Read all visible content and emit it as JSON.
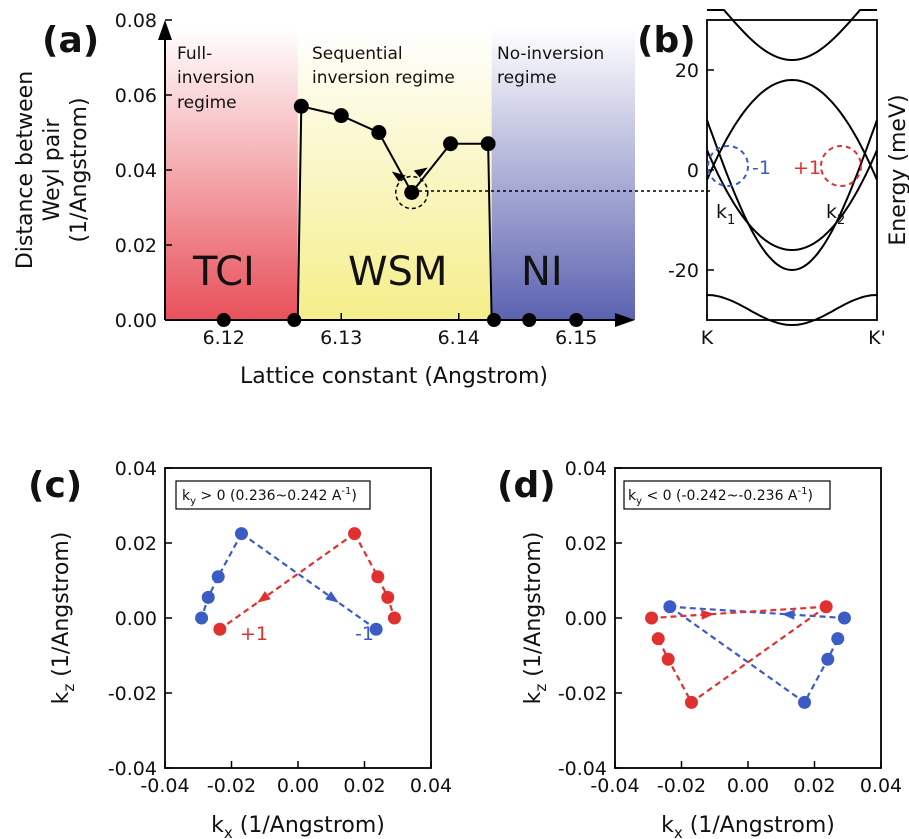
{
  "figure": {
    "panels": {
      "a": {
        "label": "(a)"
      },
      "b": {
        "label": "(b)"
      },
      "c": {
        "label": "(c)"
      },
      "d": {
        "label": "(d)"
      }
    }
  },
  "chart_data": [
    {
      "panel": "a",
      "type": "scatter",
      "xlabel": "Lattice constant (Angstrom)",
      "ylabel_line1": "Distance between",
      "ylabel_line2": "Weyl pair",
      "ylabel_line3": "(1/Angstrom)",
      "xlim": [
        6.115,
        6.155
      ],
      "ylim": [
        0.0,
        0.08
      ],
      "xticks": [
        "6.12",
        "6.13",
        "6.14",
        "6.15"
      ],
      "yticks": [
        "0.00",
        "0.02",
        "0.04",
        "0.06",
        "0.08"
      ],
      "regions": [
        {
          "name": "Full-inversion regime",
          "line1": "Full-",
          "line2": "inversion",
          "line3": "regime",
          "phase": "TCI",
          "color": "#e8505a",
          "range": [
            6.115,
            6.1263
          ]
        },
        {
          "name": "Sequential inversion regime",
          "line1": "Sequential",
          "line2": "inversion regime",
          "phase": "WSM",
          "color": "#f5ee8a",
          "range": [
            6.1263,
            6.1428
          ]
        },
        {
          "name": "No-inversion regime",
          "line1": "No-inversion",
          "line2": "regime",
          "phase": "NI",
          "color": "#5c62b0",
          "range": [
            6.1428,
            6.155
          ]
        }
      ],
      "series": [
        {
          "points": [
            [
              6.1263,
              0.0
            ],
            [
              6.1266,
              0.057
            ],
            [
              6.13,
              0.0545
            ],
            [
              6.1332,
              0.05
            ],
            [
              6.136,
              0.034
            ],
            [
              6.1393,
              0.047
            ],
            [
              6.1425,
              0.047
            ],
            [
              6.1428,
              0.0
            ]
          ]
        }
      ],
      "extra_points": [
        [
          6.12,
          0.0
        ],
        [
          6.126,
          0.0
        ],
        [
          6.143,
          0.0
        ],
        [
          6.146,
          0.0
        ],
        [
          6.15,
          0.0
        ]
      ],
      "highlight": [
        6.136,
        0.034
      ]
    },
    {
      "panel": "b",
      "type": "line",
      "ylabel": "Energy (meV)",
      "ylim": [
        -30,
        30
      ],
      "yticks": [
        "20",
        "0",
        "-20"
      ],
      "xticks": [
        "K",
        "K'"
      ],
      "weyl_points": [
        {
          "label": "k",
          "sub": "1",
          "chirality": "-1",
          "color": "#3b5cc4"
        },
        {
          "label": "k",
          "sub": "2",
          "chirality": "+1",
          "color": "#e03030"
        }
      ]
    },
    {
      "panel": "c",
      "type": "scatter",
      "annotation_main": "k",
      "annotation_sub": "y",
      "annotation_rest": " > 0 (0.236~0.242 A",
      "annotation_sup": "-1",
      "annotation_end": ")",
      "xlabel_main": "k",
      "xlabel_sub": "x",
      "xlabel_rest": " (1/Angstrom)",
      "ylabel_main": "k",
      "ylabel_sub": "z",
      "ylabel_rest": " (1/Angstrom)",
      "xlim": [
        -0.04,
        0.04
      ],
      "ylim": [
        -0.04,
        0.04
      ],
      "xticks": [
        "-0.04",
        "-0.02",
        "0.00",
        "0.02",
        "0.04"
      ],
      "yticks": [
        "-0.04",
        "-0.02",
        "0.00",
        "0.02",
        "0.04"
      ],
      "series": [
        {
          "name": "-1",
          "color": "#3b5cc4",
          "points": [
            [
              -0.017,
              0.0225
            ],
            [
              -0.024,
              0.011
            ],
            [
              -0.027,
              0.0055
            ],
            [
              -0.029,
              0.0
            ],
            [
              0.0235,
              -0.003
            ]
          ]
        },
        {
          "name": "+1",
          "color": "#e03030",
          "points": [
            [
              0.017,
              0.0225
            ],
            [
              0.024,
              0.011
            ],
            [
              0.027,
              0.0055
            ],
            [
              0.029,
              0.0
            ],
            [
              -0.0235,
              -0.003
            ]
          ]
        }
      ]
    },
    {
      "panel": "d",
      "type": "scatter",
      "annotation_main": "k",
      "annotation_sub": "y",
      "annotation_rest": " < 0 (-0.242~-0.236 A",
      "annotation_sup": "-1",
      "annotation_end": ")",
      "xlabel_main": "k",
      "xlabel_sub": "x",
      "xlabel_rest": " (1/Angstrom)",
      "ylabel_main": "k",
      "ylabel_sub": "z",
      "ylabel_rest": " (1/Angstrom)",
      "xlim": [
        -0.04,
        0.04
      ],
      "ylim": [
        -0.04,
        0.04
      ],
      "xticks": [
        "-0.04",
        "-0.02",
        "0.00",
        "0.02",
        "0.04"
      ],
      "yticks": [
        "-0.04",
        "-0.02",
        "0.00",
        "0.02",
        "0.04"
      ],
      "series": [
        {
          "name": "blue",
          "color": "#3b5cc4",
          "points": [
            [
              -0.0235,
              0.003
            ],
            [
              0.017,
              -0.0225
            ],
            [
              0.024,
              -0.011
            ],
            [
              0.027,
              -0.0055
            ],
            [
              0.029,
              0.0
            ]
          ]
        },
        {
          "name": "red",
          "color": "#e03030",
          "points": [
            [
              0.0235,
              0.003
            ],
            [
              -0.017,
              -0.0225
            ],
            [
              -0.024,
              -0.011
            ],
            [
              -0.027,
              -0.0055
            ],
            [
              -0.029,
              0.0
            ]
          ]
        }
      ]
    }
  ]
}
